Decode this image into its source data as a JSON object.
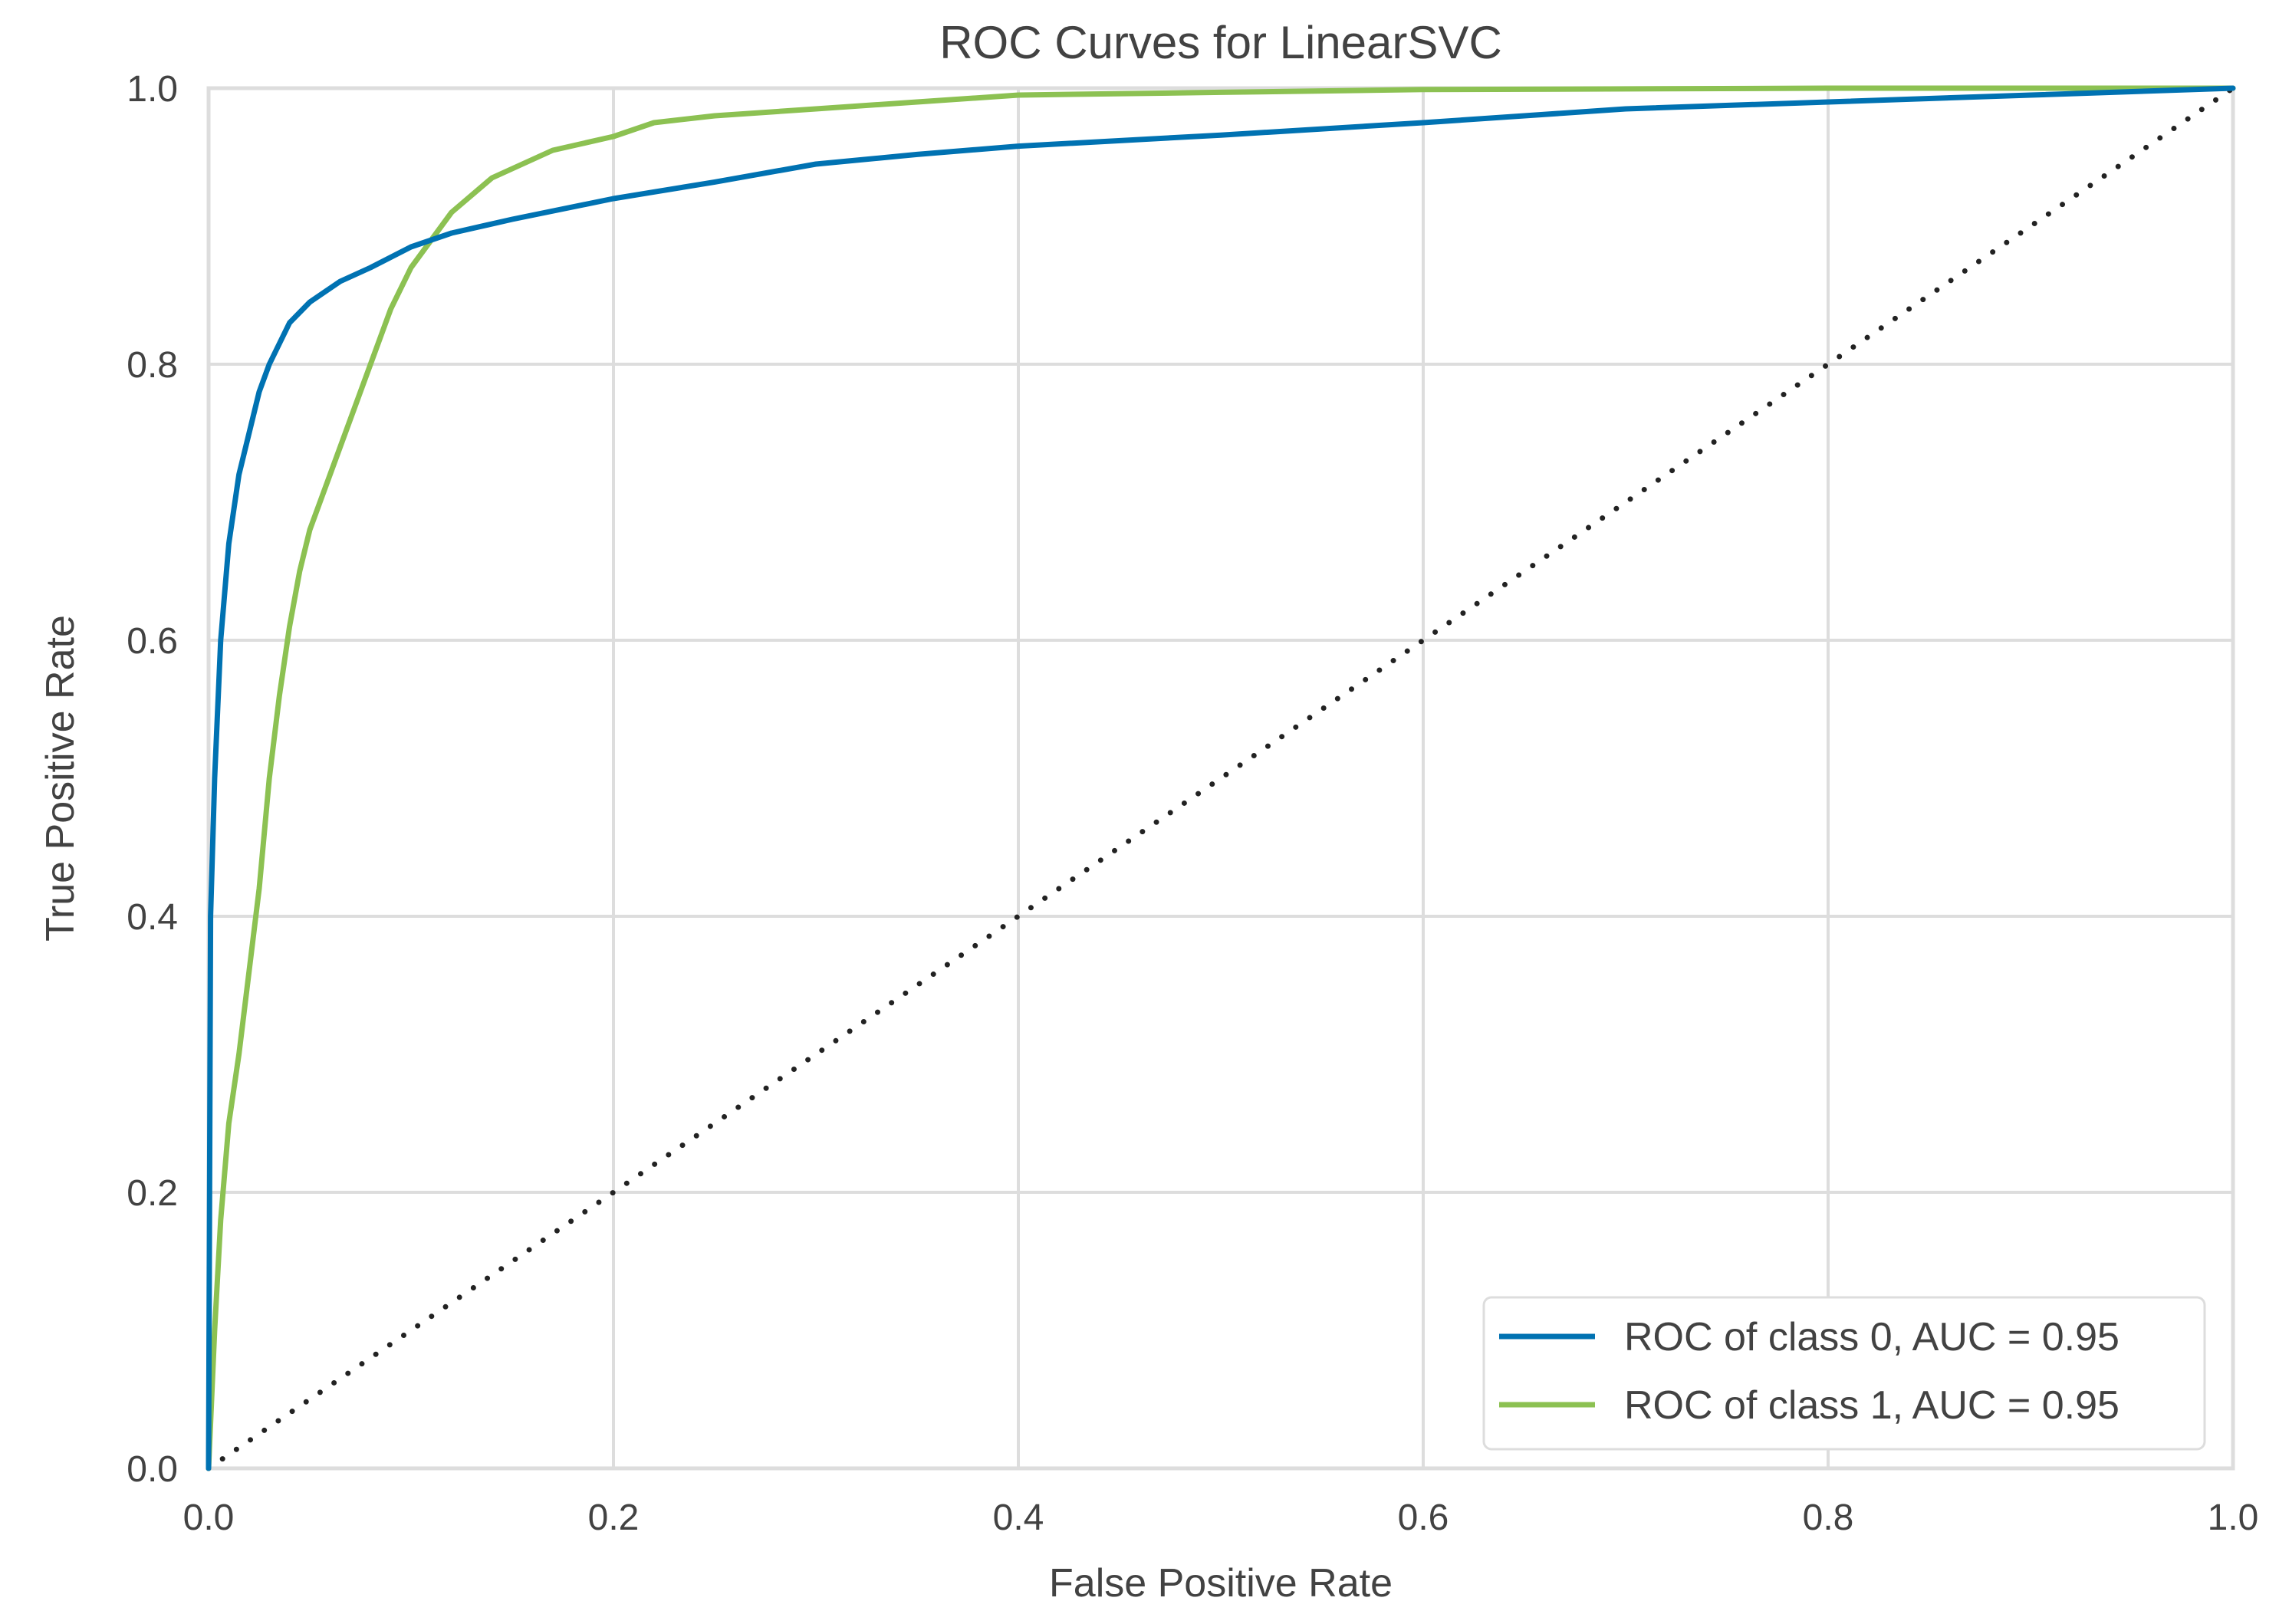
{
  "chart_data": {
    "type": "line",
    "title": "ROC Curves for LinearSVC",
    "xlabel": "False Positive Rate",
    "ylabel": "True Positive Rate",
    "xlim": [
      0.0,
      1.0
    ],
    "ylim": [
      0.0,
      1.0
    ],
    "xticks": [
      "0.0",
      "0.2",
      "0.4",
      "0.6",
      "0.8",
      "1.0"
    ],
    "yticks": [
      "0.0",
      "0.2",
      "0.4",
      "0.6",
      "0.8",
      "1.0"
    ],
    "grid": true,
    "legend_position": "bottom-right",
    "series": [
      {
        "name": "ROC of class 0, AUC = 0.95",
        "color": "#0072b2",
        "x": [
          0.0,
          0.001,
          0.003,
          0.006,
          0.01,
          0.015,
          0.02,
          0.025,
          0.03,
          0.04,
          0.05,
          0.065,
          0.08,
          0.1,
          0.12,
          0.15,
          0.2,
          0.25,
          0.3,
          0.35,
          0.4,
          0.5,
          0.6,
          0.65,
          0.7,
          0.8,
          0.9,
          1.0
        ],
        "y": [
          0.0,
          0.4,
          0.5,
          0.6,
          0.67,
          0.72,
          0.75,
          0.78,
          0.8,
          0.83,
          0.845,
          0.86,
          0.87,
          0.885,
          0.895,
          0.905,
          0.92,
          0.932,
          0.945,
          0.952,
          0.958,
          0.966,
          0.975,
          0.98,
          0.985,
          0.99,
          0.995,
          1.0
        ]
      },
      {
        "name": "ROC of class 1, AUC = 0.95",
        "color": "#8cc152",
        "x": [
          0.0,
          0.003,
          0.006,
          0.01,
          0.015,
          0.02,
          0.025,
          0.03,
          0.035,
          0.04,
          0.045,
          0.05,
          0.06,
          0.07,
          0.08,
          0.09,
          0.1,
          0.11,
          0.12,
          0.14,
          0.17,
          0.2,
          0.22,
          0.25,
          0.3,
          0.35,
          0.4,
          0.5,
          0.6,
          0.8,
          1.0
        ],
        "y": [
          0.0,
          0.1,
          0.18,
          0.25,
          0.3,
          0.36,
          0.42,
          0.5,
          0.56,
          0.61,
          0.65,
          0.68,
          0.72,
          0.76,
          0.8,
          0.84,
          0.87,
          0.89,
          0.91,
          0.935,
          0.955,
          0.965,
          0.975,
          0.98,
          0.985,
          0.99,
          0.995,
          0.997,
          0.999,
          1.0,
          1.0
        ]
      }
    ],
    "reference_line": {
      "style": "dotted",
      "color": "#222222",
      "x": [
        0.0,
        1.0
      ],
      "y": [
        0.0,
        1.0
      ]
    }
  }
}
